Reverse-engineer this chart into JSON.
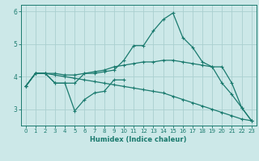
{
  "xlabel": "Humidex (Indice chaleur)",
  "ylabel": "",
  "bg_color": "#cce8e8",
  "line_color": "#1a7a6e",
  "grid_color": "#aacfcf",
  "x_values": [
    0,
    1,
    2,
    3,
    4,
    5,
    6,
    7,
    8,
    9,
    10,
    11,
    12,
    13,
    14,
    15,
    16,
    17,
    18,
    19,
    20,
    21,
    22,
    23
  ],
  "series1": [
    3.7,
    4.1,
    4.1,
    3.8,
    3.8,
    3.8,
    4.1,
    4.1,
    4.15,
    4.2,
    4.5,
    4.95,
    4.95,
    5.4,
    5.75,
    5.95,
    5.2,
    4.9,
    4.45,
    4.3,
    4.3,
    3.8,
    3.05,
    2.65
  ],
  "series2": [
    3.7,
    4.1,
    4.1,
    3.8,
    3.8,
    2.95,
    3.3,
    3.5,
    3.55,
    3.9,
    3.9,
    null,
    null,
    null,
    null,
    null,
    null,
    null,
    null,
    null,
    null,
    null,
    null,
    null
  ],
  "series3": [
    3.7,
    4.1,
    4.1,
    4.1,
    4.05,
    4.05,
    4.1,
    4.15,
    4.2,
    4.3,
    4.35,
    4.4,
    4.45,
    4.45,
    4.5,
    4.5,
    4.45,
    4.4,
    4.35,
    4.3,
    3.8,
    3.45,
    3.05,
    2.65
  ],
  "series4": [
    3.7,
    4.1,
    4.1,
    4.05,
    4.0,
    3.95,
    3.9,
    3.85,
    3.8,
    3.75,
    3.7,
    3.65,
    3.6,
    3.55,
    3.5,
    3.4,
    3.3,
    3.2,
    3.1,
    3.0,
    2.9,
    2.8,
    2.7,
    2.65
  ],
  "ylim": [
    2.5,
    6.2
  ],
  "yticks": [
    3,
    4,
    5,
    6
  ],
  "xlim": [
    -0.5,
    23.5
  ],
  "xticks": [
    0,
    1,
    2,
    3,
    4,
    5,
    6,
    7,
    8,
    9,
    10,
    11,
    12,
    13,
    14,
    15,
    16,
    17,
    18,
    19,
    20,
    21,
    22,
    23
  ],
  "marker": "+",
  "markersize": 3.5,
  "linewidth": 0.9,
  "tick_fontsize": 5.0,
  "xlabel_fontsize": 6.0
}
